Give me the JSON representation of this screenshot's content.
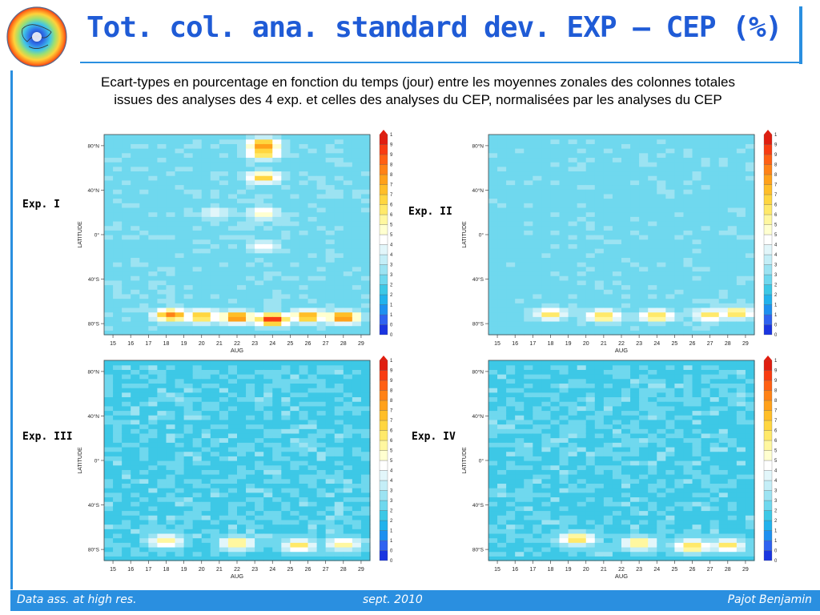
{
  "header": {
    "title": "Tot. col. ana. standard dev. EXP – CEP (%)",
    "subtitle_line1": "Ecart-types en pourcentage en fonction du temps (jour) entre les moyennes zonales des colonnes totales",
    "subtitle_line2": "issues des analyses des 4 exp. et celles des analyses du CEP, normalisées par les analyses du CEP"
  },
  "colors": {
    "accent": "#2a8fe0",
    "title": "#1f5bd6",
    "colorbar": [
      "#1a35e0",
      "#2f62f0",
      "#1e90f0",
      "#22b2ec",
      "#3dc8e6",
      "#6fd8ee",
      "#9ce3f2",
      "#c4eef7",
      "#e2f6fa",
      "#ffffff",
      "#ffffd0",
      "#fff7a0",
      "#ffe96a",
      "#ffd640",
      "#ffbe28",
      "#ffa11a",
      "#ff8216",
      "#ff6014",
      "#f83c12",
      "#e01e10"
    ]
  },
  "icons": {
    "logo": "globe-logo-icon"
  },
  "footer": {
    "left": "Data ass. at high res.",
    "center": "sept. 2010",
    "right": "Pajot Benjamin"
  },
  "chart_data": [
    {
      "type": "heatmap",
      "label": "Exp. I",
      "xlabel": "AUG",
      "ylabel": "LATITUDE",
      "x_ticks": [
        "15",
        "16",
        "17",
        "18",
        "19",
        "20",
        "21",
        "22",
        "23",
        "24",
        "25",
        "26",
        "27",
        "28",
        "29"
      ],
      "y_ticks": [
        "80°N",
        "40°N",
        "0°",
        "40°S",
        "80°S"
      ],
      "xlim": [
        14.5,
        29.5
      ],
      "ylim": [
        -90,
        90
      ],
      "colorbar_ticks": [
        "10",
        "9.5",
        "9",
        "8.5",
        "8",
        "7.5",
        "7",
        "6.5",
        "6",
        "5.5",
        "5",
        "4.5",
        "4",
        "3.5",
        "3",
        "2.5",
        "2",
        "1.5",
        "1",
        "0.5",
        "0"
      ],
      "zlim": [
        0,
        10
      ],
      "background_value": 2.6,
      "features": [
        {
          "x": 23.5,
          "lat": 81,
          "value": 8.5
        },
        {
          "x": 23.5,
          "lat": 74,
          "value": 7.5
        },
        {
          "x": 23.5,
          "lat": 52,
          "value": 7
        },
        {
          "x": 23.5,
          "lat": 20,
          "value": 5.5
        },
        {
          "x": 23.5,
          "lat": -10,
          "value": 5
        },
        {
          "x": 20.8,
          "lat": 20,
          "value": 4.5
        },
        {
          "x": 18.3,
          "lat": -72,
          "value": 8.5
        },
        {
          "x": 20,
          "lat": -73,
          "value": 7.5
        },
        {
          "x": 22,
          "lat": -74,
          "value": 8.5
        },
        {
          "x": 24,
          "lat": -76,
          "value": 10
        },
        {
          "x": 26,
          "lat": -73,
          "value": 8
        },
        {
          "x": 28,
          "lat": -74,
          "value": 8.5
        }
      ]
    },
    {
      "type": "heatmap",
      "label": "Exp. II",
      "xlabel": "AUG",
      "ylabel": "LATITUDE",
      "x_ticks": [
        "15",
        "16",
        "17",
        "18",
        "19",
        "20",
        "21",
        "22",
        "23",
        "24",
        "25",
        "26",
        "27",
        "28",
        "29"
      ],
      "y_ticks": [
        "80°N",
        "40°N",
        "0°",
        "40°S",
        "80°S"
      ],
      "xlim": [
        14.5,
        29.5
      ],
      "ylim": [
        -90,
        90
      ],
      "colorbar_ticks": [
        "10",
        "9.5",
        "9",
        "8.5",
        "8",
        "7.5",
        "7",
        "6.5",
        "6",
        "5.5",
        "5",
        "4.5",
        "4",
        "3.5",
        "3",
        "2.5",
        "2",
        "1.5",
        "1",
        "0.5",
        "0"
      ],
      "zlim": [
        0,
        10
      ],
      "background_value": 2.5,
      "features": [
        {
          "x": 18,
          "lat": -71,
          "value": 6.5
        },
        {
          "x": 21,
          "lat": -73,
          "value": 7
        },
        {
          "x": 24,
          "lat": -73,
          "value": 7
        },
        {
          "x": 27,
          "lat": -72,
          "value": 6.5
        },
        {
          "x": 28.5,
          "lat": -70,
          "value": 7
        }
      ]
    },
    {
      "type": "heatmap",
      "label": "Exp. III",
      "xlabel": "AUG",
      "ylabel": "LATITUDE",
      "x_ticks": [
        "15",
        "16",
        "17",
        "18",
        "19",
        "20",
        "21",
        "22",
        "23",
        "24",
        "25",
        "26",
        "27",
        "28",
        "29"
      ],
      "y_ticks": [
        "80°N",
        "40°N",
        "0°",
        "40°S",
        "80°S"
      ],
      "xlim": [
        14.5,
        29.5
      ],
      "ylim": [
        -90,
        90
      ],
      "colorbar_ticks": [
        "10",
        "9.5",
        "9",
        "8.5",
        "8",
        "7.5",
        "7",
        "6.5",
        "6",
        "5.5",
        "5",
        "4.5",
        "4",
        "3.5",
        "3",
        "2.5",
        "2",
        "1.5",
        "1",
        "0.5",
        "0"
      ],
      "zlim": [
        0,
        10
      ],
      "background_value": 2.4,
      "features": [
        {
          "x": 18,
          "lat": -72,
          "value": 6
        },
        {
          "x": 22,
          "lat": -74,
          "value": 6.5
        },
        {
          "x": 25.5,
          "lat": -76,
          "value": 6.5
        },
        {
          "x": 28,
          "lat": -75,
          "value": 6
        }
      ]
    },
    {
      "type": "heatmap",
      "label": "Exp. IV",
      "xlabel": "AUG",
      "ylabel": "LATITUDE",
      "x_ticks": [
        "15",
        "16",
        "17",
        "18",
        "19",
        "20",
        "21",
        "22",
        "23",
        "24",
        "25",
        "26",
        "27",
        "28",
        "29"
      ],
      "y_ticks": [
        "80°N",
        "40°N",
        "0°",
        "40°S",
        "80°S"
      ],
      "xlim": [
        14.5,
        29.5
      ],
      "ylim": [
        -90,
        90
      ],
      "colorbar_ticks": [
        "10",
        "9.5",
        "9",
        "8.5",
        "8",
        "7.5",
        "7",
        "6.5",
        "6",
        "5.5",
        "5",
        "4.5",
        "4",
        "3.5",
        "3",
        "2.5",
        "2",
        "1.5",
        "1",
        "0.5",
        "0"
      ],
      "zlim": [
        0,
        10
      ],
      "background_value": 2.4,
      "features": [
        {
          "x": 19.5,
          "lat": -70,
          "value": 7
        },
        {
          "x": 23,
          "lat": -74,
          "value": 6.5
        },
        {
          "x": 26,
          "lat": -77,
          "value": 7
        },
        {
          "x": 28,
          "lat": -76,
          "value": 6.5
        }
      ]
    }
  ]
}
